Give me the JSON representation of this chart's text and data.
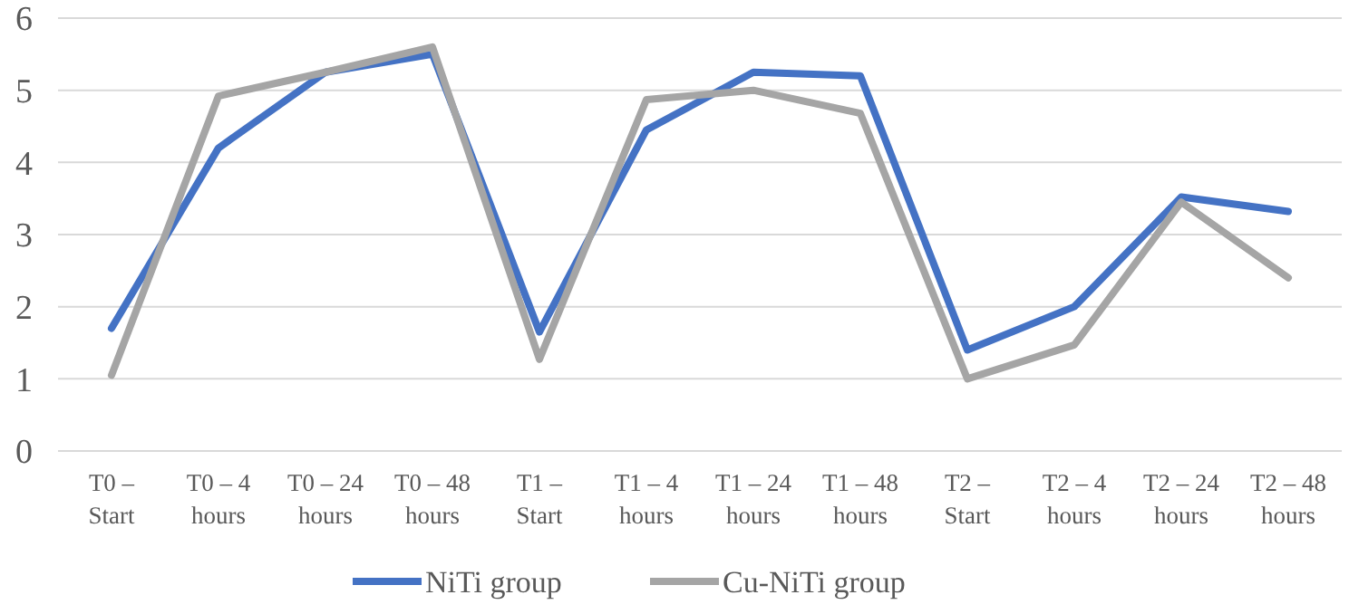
{
  "chart_data": {
    "type": "line",
    "categories": [
      "T0 – Start",
      "T0 – 4 hours",
      "T0 – 24 hours",
      "T0 – 48 hours",
      "T1 – Start",
      "T1 – 4 hours",
      "T1 – 24 hours",
      "T1 – 48 hours",
      "T2 – Start",
      "T2 – 4 hours",
      "T2 – 24 hours",
      "T2 – 48 hours"
    ],
    "series": [
      {
        "name": "NiTi group",
        "color": "#4472c4",
        "values": [
          1.7,
          4.2,
          5.25,
          5.5,
          1.65,
          4.45,
          5.25,
          5.2,
          1.4,
          2.0,
          3.52,
          3.32
        ]
      },
      {
        "name": "Cu-NiTi group",
        "color": "#a5a5a5",
        "values": [
          1.05,
          4.92,
          5.25,
          5.6,
          1.27,
          4.87,
          5.0,
          4.68,
          1.0,
          1.47,
          3.45,
          2.4
        ]
      }
    ],
    "ylim": [
      0,
      6
    ],
    "yticks": [
      0,
      1,
      2,
      3,
      4,
      5,
      6
    ],
    "grid": "y",
    "legend": "bottom",
    "marker": "none",
    "line_style": "solid"
  }
}
